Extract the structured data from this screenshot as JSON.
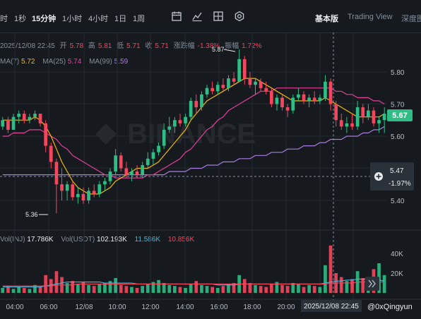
{
  "toolbar": {
    "intervals": [
      "时",
      "1秒",
      "15分钟",
      "1小时",
      "4小时",
      "1日",
      "1周"
    ],
    "active_interval": "15分钟",
    "views": [
      "基本版",
      "Trading View",
      "深度图"
    ],
    "active_view": "基本版",
    "icons": [
      "calendar-icon",
      "indicator-icon",
      "layout-icon",
      "settings-icon"
    ]
  },
  "ohlc": {
    "datetime": "2025/12/08 22:45",
    "open_label": "开",
    "open": "5.78",
    "high_label": "高",
    "high": "5.81",
    "low_label": "低",
    "low": "5.71",
    "close_label": "收",
    "close": "5.71",
    "change_label": "涨跌幅",
    "change": "-1.38%",
    "amp_label": "振幅",
    "amp": "1.72%"
  },
  "ma": {
    "ma7_label": "MA(7)",
    "ma7": "5.72",
    "ma7_color": "#f0b90b",
    "ma25_label": "MA(25)",
    "ma25": "5.74",
    "ma25_color": "#e3409a",
    "ma99_label": "MA(99)",
    "ma99": "5.59",
    "ma99_color": "#a87ddf"
  },
  "volume": {
    "inj_label": "Vol(INJ)",
    "inj": "17.786K",
    "usdt_label": "Vol(USDT)",
    "usdt": "102.193K",
    "ma1": "11.586K",
    "ma1_color": "#4fb3d9",
    "ma2": "10.856K",
    "ma2_color": "#f6465d"
  },
  "price_axis": {
    "ticks": [
      "5.80",
      "5.70",
      "5.60",
      "5.40"
    ],
    "current_price": "5.67",
    "crosshair_price": "5.47",
    "crosshair_change": "-1.97%",
    "high_marker": "5.87",
    "low_marker": "5.36"
  },
  "volume_axis": {
    "ticks": [
      "40K",
      "20K"
    ]
  },
  "time_axis": {
    "ticks": [
      "04:00",
      "06:00",
      "12/08",
      "10:00",
      "12:00",
      "14:00",
      "16:00",
      "18:00",
      "20:00"
    ],
    "crosshair_time": "2025/12/08 22:45"
  },
  "watermark": "@0xQingyun",
  "colors": {
    "up": "#2ebd85",
    "down": "#f6465d",
    "bg": "#161a1e",
    "grid": "#242a31"
  },
  "chart_data": {
    "type": "candlestick",
    "ylim": [
      5.33,
      5.9
    ],
    "ohlc": [
      [
        5.63,
        5.66,
        5.62,
        5.65
      ],
      [
        5.65,
        5.66,
        5.61,
        5.62
      ],
      [
        5.62,
        5.67,
        5.62,
        5.66
      ],
      [
        5.66,
        5.68,
        5.64,
        5.67
      ],
      [
        5.67,
        5.68,
        5.64,
        5.65
      ],
      [
        5.65,
        5.67,
        5.64,
        5.66
      ],
      [
        5.66,
        5.68,
        5.65,
        5.67
      ],
      [
        5.67,
        5.67,
        5.63,
        5.64
      ],
      [
        5.64,
        5.65,
        5.55,
        5.57
      ],
      [
        5.57,
        5.58,
        5.5,
        5.52
      ],
      [
        5.52,
        5.53,
        5.36,
        5.45
      ],
      [
        5.45,
        5.5,
        5.4,
        5.43
      ],
      [
        5.43,
        5.46,
        5.4,
        5.45
      ],
      [
        5.45,
        5.46,
        5.4,
        5.41
      ],
      [
        5.41,
        5.44,
        5.39,
        5.42
      ],
      [
        5.42,
        5.44,
        5.39,
        5.4
      ],
      [
        5.4,
        5.44,
        5.39,
        5.43
      ],
      [
        5.43,
        5.45,
        5.41,
        5.42
      ],
      [
        5.42,
        5.46,
        5.41,
        5.45
      ],
      [
        5.45,
        5.47,
        5.43,
        5.46
      ],
      [
        5.46,
        5.5,
        5.45,
        5.49
      ],
      [
        5.49,
        5.56,
        5.48,
        5.54
      ],
      [
        5.54,
        5.55,
        5.49,
        5.5
      ],
      [
        5.5,
        5.52,
        5.47,
        5.48
      ],
      [
        5.48,
        5.5,
        5.46,
        5.49
      ],
      [
        5.49,
        5.51,
        5.47,
        5.48
      ],
      [
        5.48,
        5.52,
        5.47,
        5.51
      ],
      [
        5.51,
        5.55,
        5.5,
        5.53
      ],
      [
        5.53,
        5.56,
        5.51,
        5.55
      ],
      [
        5.55,
        5.58,
        5.54,
        5.57
      ],
      [
        5.57,
        5.64,
        5.56,
        5.62
      ],
      [
        5.62,
        5.66,
        5.61,
        5.63
      ],
      [
        5.63,
        5.66,
        5.61,
        5.65
      ],
      [
        5.65,
        5.67,
        5.63,
        5.64
      ],
      [
        5.64,
        5.67,
        5.63,
        5.66
      ],
      [
        5.66,
        5.72,
        5.65,
        5.71
      ],
      [
        5.71,
        5.73,
        5.67,
        5.69
      ],
      [
        5.69,
        5.74,
        5.68,
        5.73
      ],
      [
        5.73,
        5.76,
        5.72,
        5.75
      ],
      [
        5.75,
        5.77,
        5.73,
        5.74
      ],
      [
        5.74,
        5.77,
        5.73,
        5.76
      ],
      [
        5.76,
        5.78,
        5.74,
        5.75
      ],
      [
        5.75,
        5.79,
        5.74,
        5.78
      ],
      [
        5.78,
        5.8,
        5.76,
        5.77
      ],
      [
        5.77,
        5.87,
        5.77,
        5.84
      ],
      [
        5.84,
        5.85,
        5.76,
        5.78
      ],
      [
        5.78,
        5.8,
        5.75,
        5.76
      ],
      [
        5.76,
        5.78,
        5.73,
        5.77
      ],
      [
        5.77,
        5.78,
        5.74,
        5.75
      ],
      [
        5.75,
        5.77,
        5.73,
        5.74
      ],
      [
        5.74,
        5.75,
        5.69,
        5.7
      ],
      [
        5.7,
        5.73,
        5.68,
        5.72
      ],
      [
        5.72,
        5.73,
        5.68,
        5.69
      ],
      [
        5.69,
        5.7,
        5.66,
        5.68
      ],
      [
        5.68,
        5.73,
        5.67,
        5.72
      ],
      [
        5.72,
        5.75,
        5.71,
        5.73
      ],
      [
        5.73,
        5.74,
        5.7,
        5.71
      ],
      [
        5.71,
        5.73,
        5.69,
        5.72
      ],
      [
        5.72,
        5.74,
        5.7,
        5.71
      ],
      [
        5.71,
        5.73,
        5.7,
        5.72
      ],
      [
        5.72,
        5.79,
        5.71,
        5.77
      ],
      [
        5.77,
        5.78,
        5.68,
        5.7
      ],
      [
        5.7,
        5.71,
        5.63,
        5.65
      ],
      [
        5.65,
        5.67,
        5.62,
        5.63
      ],
      [
        5.63,
        5.66,
        5.61,
        5.64
      ],
      [
        5.64,
        5.67,
        5.62,
        5.63
      ],
      [
        5.63,
        5.71,
        5.62,
        5.69
      ],
      [
        5.69,
        5.7,
        5.64,
        5.66
      ],
      [
        5.66,
        5.7,
        5.65,
        5.68
      ],
      [
        5.68,
        5.69,
        5.63,
        5.64
      ],
      [
        5.64,
        5.66,
        5.61,
        5.65
      ],
      [
        5.65,
        5.69,
        5.61,
        5.67
      ]
    ],
    "volumes_k": [
      5,
      7,
      4,
      6,
      5,
      4,
      8,
      6,
      18,
      14,
      22,
      16,
      10,
      12,
      9,
      11,
      8,
      7,
      9,
      10,
      12,
      15,
      8,
      7,
      6,
      5,
      7,
      9,
      11,
      13,
      10,
      8,
      7,
      6,
      5,
      9,
      12,
      8,
      7,
      6,
      5,
      7,
      9,
      10,
      18,
      14,
      10,
      8,
      7,
      6,
      9,
      11,
      8,
      7,
      10,
      9,
      6,
      8,
      7,
      6,
      28,
      48,
      20,
      16,
      12,
      14,
      22,
      15,
      12,
      24,
      30,
      18
    ],
    "ma7": [
      5.65,
      5.65,
      5.65,
      5.65,
      5.65,
      5.65,
      5.66,
      5.65,
      5.63,
      5.6,
      5.56,
      5.52,
      5.49,
      5.46,
      5.44,
      5.43,
      5.42,
      5.42,
      5.42,
      5.43,
      5.44,
      5.46,
      5.47,
      5.48,
      5.49,
      5.5,
      5.5,
      5.5,
      5.51,
      5.52,
      5.54,
      5.56,
      5.58,
      5.6,
      5.62,
      5.65,
      5.67,
      5.69,
      5.71,
      5.72,
      5.73,
      5.74,
      5.75,
      5.76,
      5.77,
      5.78,
      5.78,
      5.78,
      5.77,
      5.76,
      5.75,
      5.74,
      5.73,
      5.72,
      5.71,
      5.71,
      5.71,
      5.71,
      5.71,
      5.71,
      5.72,
      5.71,
      5.7,
      5.69,
      5.68,
      5.67,
      5.66,
      5.66,
      5.66,
      5.66,
      5.66,
      5.67
    ],
    "ma25": [
      5.6,
      5.6,
      5.61,
      5.61,
      5.61,
      5.62,
      5.62,
      5.62,
      5.61,
      5.6,
      5.59,
      5.57,
      5.56,
      5.54,
      5.53,
      5.52,
      5.51,
      5.5,
      5.49,
      5.48,
      5.48,
      5.47,
      5.47,
      5.47,
      5.47,
      5.47,
      5.47,
      5.48,
      5.48,
      5.49,
      5.5,
      5.51,
      5.52,
      5.53,
      5.55,
      5.56,
      5.58,
      5.6,
      5.62,
      5.63,
      5.65,
      5.66,
      5.68,
      5.69,
      5.7,
      5.71,
      5.72,
      5.73,
      5.74,
      5.74,
      5.74,
      5.75,
      5.75,
      5.75,
      5.75,
      5.75,
      5.75,
      5.75,
      5.75,
      5.75,
      5.75,
      5.75,
      5.74,
      5.74,
      5.73,
      5.73,
      5.72,
      5.72,
      5.72,
      5.71,
      5.71,
      5.7
    ],
    "ma99": [
      5.48,
      5.48,
      5.48,
      5.48,
      5.48,
      5.48,
      5.48,
      5.48,
      5.48,
      5.48,
      5.48,
      5.48,
      5.48,
      5.48,
      5.48,
      5.48,
      5.48,
      5.48,
      5.48,
      5.48,
      5.48,
      5.48,
      5.48,
      5.48,
      5.48,
      5.48,
      5.48,
      5.48,
      5.48,
      5.48,
      5.48,
      5.49,
      5.49,
      5.49,
      5.49,
      5.5,
      5.5,
      5.5,
      5.51,
      5.51,
      5.51,
      5.52,
      5.52,
      5.52,
      5.53,
      5.53,
      5.53,
      5.54,
      5.54,
      5.54,
      5.55,
      5.55,
      5.55,
      5.56,
      5.56,
      5.56,
      5.57,
      5.57,
      5.57,
      5.58,
      5.58,
      5.59,
      5.59,
      5.59,
      5.6,
      5.6,
      5.6,
      5.61,
      5.61,
      5.62,
      5.62,
      5.63
    ],
    "vol_ma1_k": [
      6,
      6,
      6,
      6,
      6,
      6,
      6,
      6,
      7,
      8,
      9,
      10,
      11,
      11,
      11,
      11,
      11,
      11,
      11,
      10,
      10,
      10,
      10,
      10,
      10,
      9,
      9,
      9,
      9,
      9,
      9,
      9,
      9,
      9,
      9,
      9,
      9,
      9,
      9,
      9,
      8,
      8,
      8,
      8,
      9,
      9,
      9,
      9,
      9,
      9,
      9,
      9,
      9,
      9,
      9,
      9,
      9,
      9,
      9,
      9,
      10,
      11,
      12,
      12,
      13,
      13,
      14,
      14,
      14,
      14,
      13,
      12
    ],
    "vol_ma2_k": [
      7,
      7,
      7,
      7,
      7,
      7,
      7,
      7,
      7,
      7,
      8,
      8,
      8,
      8,
      9,
      9,
      9,
      9,
      9,
      9,
      9,
      9,
      9,
      9,
      9,
      9,
      9,
      9,
      9,
      9,
      9,
      9,
      9,
      9,
      9,
      9,
      9,
      9,
      9,
      9,
      9,
      9,
      9,
      9,
      9,
      9,
      9,
      9,
      9,
      9,
      9,
      9,
      9,
      9,
      9,
      9,
      9,
      9,
      9,
      9,
      9,
      10,
      10,
      10,
      10,
      10,
      11,
      11,
      11,
      11,
      11,
      11
    ]
  }
}
